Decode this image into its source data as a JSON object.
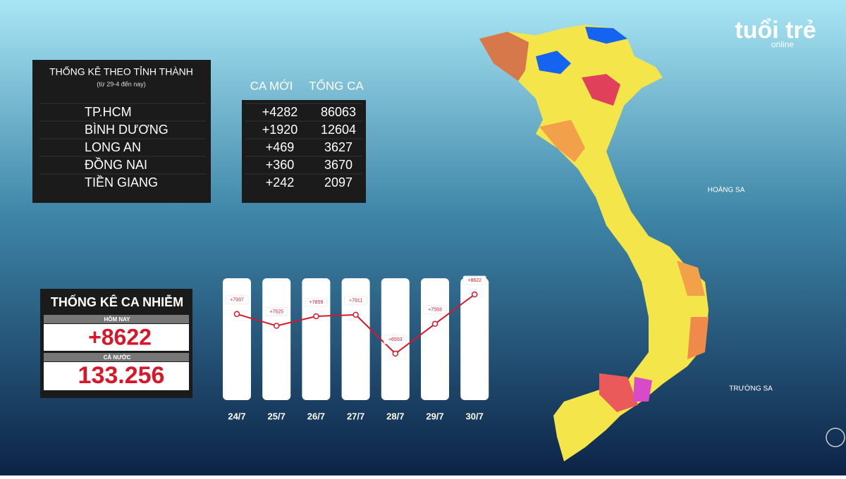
{
  "logo": {
    "main": "tuổi trẻ",
    "sub": "online"
  },
  "province_table": {
    "title": "THỐNG KÊ THEO TỈNH THÀNH",
    "subtitle": "(từ 29-4 đến nay)",
    "headers": [
      "CA MỚI",
      "TỔNG CA"
    ],
    "rows": [
      [
        "TP.HCM",
        "+4282",
        "86063"
      ],
      [
        "BÌNH DƯƠNG",
        "+1920",
        "12604"
      ],
      [
        "LONG AN",
        "+469",
        "3627"
      ],
      [
        "ĐỒNG NAI",
        "+360",
        "3670"
      ],
      [
        "TIỀN GIANG",
        "+242",
        "2097"
      ]
    ]
  },
  "summary": {
    "title": "THỐNG KÊ CA NHIỄM",
    "today_label": "HÔM NAY",
    "today_value": "+8622",
    "total_label": "CẢ NƯỚC",
    "total_value": "133.256"
  },
  "daily_chart": {
    "categories": [
      "24/7",
      "25/7",
      "26/7",
      "27/7",
      "28/7",
      "29/7",
      "30/7"
    ],
    "values": [
      7937,
      7525,
      7859,
      7911,
      6553,
      7593,
      8622
    ],
    "value_labels": [
      "+7937",
      "+7525",
      "+7859",
      "+7911",
      "+6553",
      "+7593",
      "+8622"
    ],
    "color": "#d7182a"
  },
  "map": {
    "labels": [
      "HOÀNG SA",
      "TRƯỜNG SA"
    ]
  }
}
